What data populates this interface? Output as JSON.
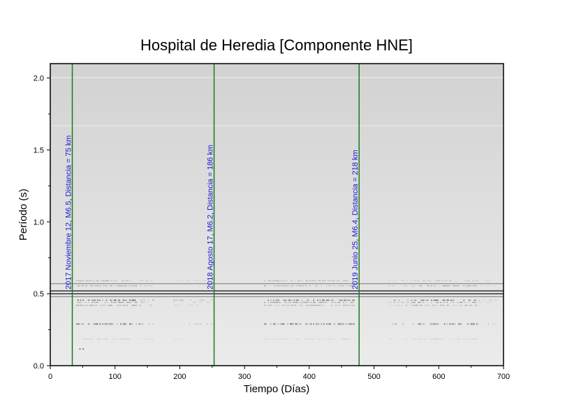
{
  "chart_data": {
    "type": "heatmap",
    "title": "Hospital de Heredia [Componente HNE]",
    "xlabel": "Tiempo (Días)",
    "ylabel": "Período (s)",
    "xlim": [
      0,
      700
    ],
    "ylim": [
      0.0,
      2.1
    ],
    "xticks": [
      0,
      100,
      200,
      300,
      400,
      500,
      600,
      700
    ],
    "yticks": [
      0.0,
      0.5,
      1.0,
      1.5,
      2.0
    ],
    "xtick_labels": [
      "0",
      "100",
      "200",
      "300",
      "400",
      "500",
      "600",
      "700"
    ],
    "ytick_labels": [
      "0.0",
      "0.5",
      "1.0",
      "1.5",
      "2.0"
    ],
    "colormap": "grayscale",
    "persistent_period_lines": [
      0.48,
      0.5,
      0.52,
      0.57
    ],
    "events": [
      {
        "day": 34,
        "label": "2017 Noviembre 12, M6.5, Distancia = 75 km"
      },
      {
        "day": 253,
        "label": "2018 Agosto 17, M6.2, Distancia = 186 km"
      },
      {
        "day": 477,
        "label": "2019 Junio 25, M6.4, Distancia = 218 km"
      }
    ],
    "colors": {
      "event_line": "#1a7a1a",
      "event_text": "#1a1acc"
    }
  }
}
